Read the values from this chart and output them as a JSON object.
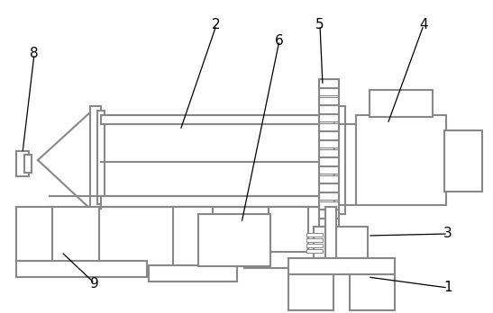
{
  "bg_color": "#ffffff",
  "line_color": "#888888",
  "line_width": 1.5,
  "fontsize": 11
}
